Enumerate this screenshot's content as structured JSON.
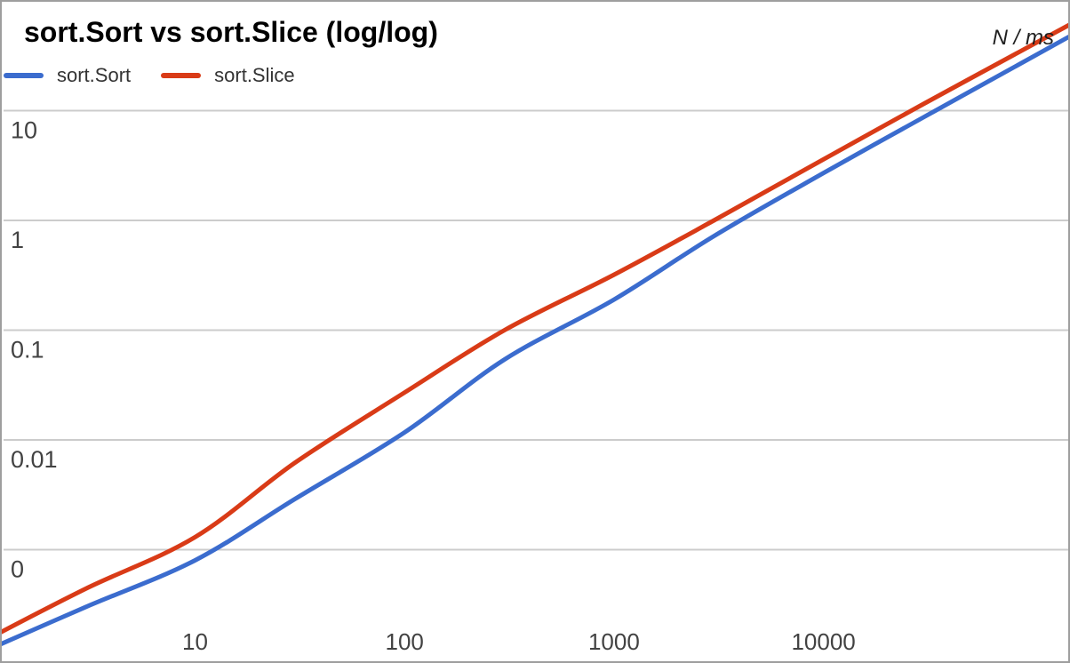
{
  "title": "sort.Sort vs sort.Slice (log/log)",
  "axis_unit_label": "N / ms",
  "frame": {
    "border_color": "#9e9e9e",
    "background": "#ffffff"
  },
  "legend": [
    {
      "label": "sort.Sort",
      "color": "#3b6cce"
    },
    {
      "label": "sort.Slice",
      "color": "#d93b17"
    }
  ],
  "chart_data": {
    "type": "line",
    "title": "sort.Sort vs sort.Slice (log/log)",
    "xlabel": "N",
    "ylabel": "ms",
    "x_scale": "log",
    "y_scale": "log",
    "grid": "horizontal",
    "grid_color": "#cccccc",
    "tick_color": "#424242",
    "legend_position": "top-left",
    "x_ticks": [
      10,
      100,
      1000,
      10000
    ],
    "x_tick_labels": [
      "10",
      "100",
      "1000",
      "10000"
    ],
    "y_ticks": [
      10,
      1,
      0.1,
      0.01,
      0.001
    ],
    "y_tick_labels": [
      "10",
      "1",
      "0.1",
      "0.01",
      "0"
    ],
    "x": [
      1,
      3,
      10,
      30,
      100,
      300,
      1000,
      3000,
      10000,
      30000,
      100000
    ],
    "series": [
      {
        "name": "sort.Sort",
        "color": "#3b6cce",
        "values": [
          0.00012,
          0.0003,
          0.0008,
          0.0029,
          0.0117,
          0.054,
          0.19,
          0.72,
          2.7,
          8.7,
          31
        ]
      },
      {
        "name": "sort.Slice",
        "color": "#d93b17",
        "values": [
          0.00015,
          0.00044,
          0.0013,
          0.0062,
          0.027,
          0.1,
          0.32,
          1.0,
          3.6,
          11.5,
          40
        ]
      }
    ]
  }
}
